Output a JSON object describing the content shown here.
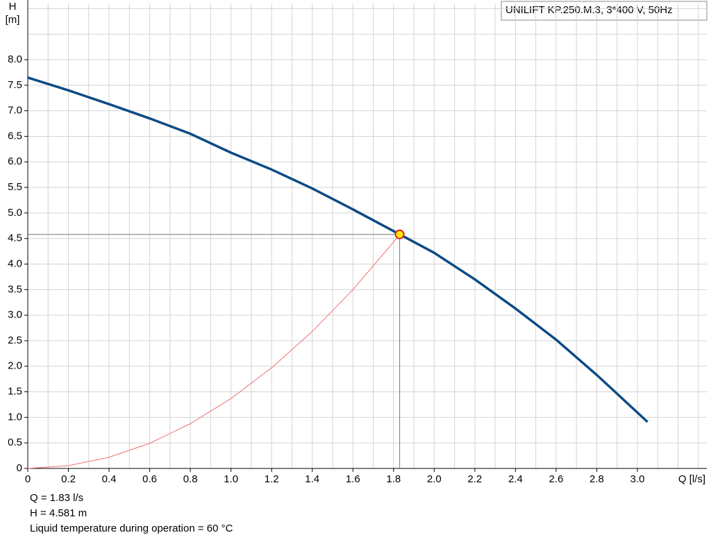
{
  "chart_data": {
    "type": "line",
    "title": "UNILIFT KP.250.M.3, 3*400 V, 50Hz",
    "y_label": "H",
    "y_unit": "[m]",
    "x_label": "Q [l/s]",
    "xlim": [
      0,
      3.35
    ],
    "ylim": [
      0,
      9.1
    ],
    "xticks": [
      0,
      0.2,
      0.4,
      0.6,
      0.8,
      {
        "value": 1,
        "label": "1.0"
      },
      1.2,
      1.4,
      1.6,
      1.8,
      {
        "value": 2,
        "label": "2.0"
      },
      2.2,
      2.4,
      2.6,
      2.8,
      {
        "value": 3,
        "label": "3.0"
      }
    ],
    "yticks": [
      0,
      0.5,
      {
        "value": 1,
        "label": "1.0"
      },
      1.5,
      {
        "value": 2,
        "label": "2.0"
      },
      2.5,
      {
        "value": 3,
        "label": "3.0"
      },
      3.5,
      {
        "value": 4,
        "label": "4.0"
      },
      4.5,
      {
        "value": 5,
        "label": "5.0"
      },
      5.5,
      {
        "value": 6,
        "label": "6.0"
      },
      6.5,
      {
        "value": 7,
        "label": "7.0"
      },
      7.5,
      {
        "value": 8,
        "label": "8.0"
      }
    ],
    "xgrid": [
      0.1,
      0.3,
      0.5,
      0.7,
      0.9,
      1.1,
      1.3,
      1.5,
      1.7,
      1.9,
      2.1,
      2.3,
      2.5,
      2.7,
      2.9,
      3.1,
      3.2,
      3.3
    ],
    "ygrid": [
      8.5,
      9
    ],
    "grid": true,
    "series": [
      {
        "color": "#0d4a85",
        "width": 3.5,
        "x": [
          0,
          0.2,
          0.4,
          0.6,
          0.8,
          1.0,
          1.2,
          1.4,
          1.6,
          1.83,
          2.0,
          2.2,
          2.4,
          2.6,
          2.8,
          3.05
        ],
        "values": [
          7.65,
          7.4,
          7.13,
          6.85,
          6.55,
          6.18,
          5.85,
          5.48,
          5.07,
          4.581,
          4.22,
          3.7,
          3.13,
          2.52,
          1.83,
          0.91
        ]
      },
      {
        "color": "#f07070",
        "width": 1,
        "x": [
          0,
          0.2,
          0.4,
          0.6,
          0.8,
          1.0,
          1.2,
          1.4,
          1.6,
          1.8,
          1.83
        ],
        "values": [
          0,
          0.055,
          0.219,
          0.492,
          0.876,
          1.368,
          1.97,
          2.68,
          3.5,
          4.43,
          4.581
        ]
      }
    ],
    "operating_point": {
      "x": 1.83,
      "y": 4.581
    },
    "info": [
      "Q = 1.83 l/s",
      "H = 4.581 m",
      "Liquid temperature during operation = 60 °C"
    ]
  }
}
